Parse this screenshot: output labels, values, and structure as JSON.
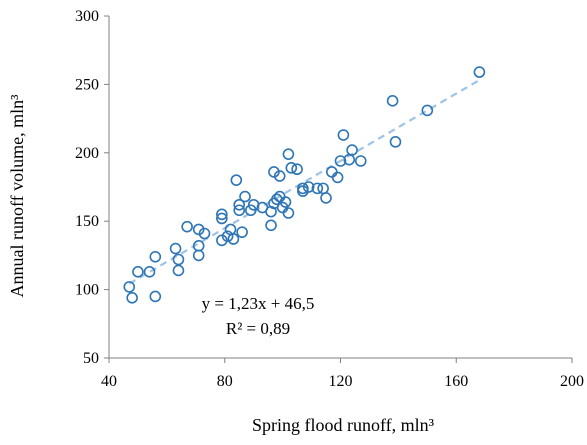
{
  "chart_data": {
    "type": "scatter",
    "title": "",
    "xlabel": "Spring flood runoff, mln³",
    "ylabel": "Annual runoff volume, mln³",
    "xlim": [
      40,
      200
    ],
    "ylim": [
      50,
      300
    ],
    "x_ticks": [
      40,
      80,
      120,
      160,
      200
    ],
    "y_ticks": [
      50,
      100,
      150,
      200,
      250,
      300
    ],
    "x_tick_labels": [
      "40",
      "80",
      "120",
      "160",
      "200"
    ],
    "y_tick_labels": [
      "50",
      "100",
      "150",
      "200",
      "250",
      "300"
    ],
    "grid": false,
    "legend": "none",
    "marker_color": "#2E75B6",
    "trendline_color": "#9DC3E6",
    "trendline": {
      "type": "linear",
      "slope": 1.23,
      "intercept": 46.5,
      "x_range": [
        47,
        168
      ]
    },
    "annotations": [
      "y = 1,23x + 46,5",
      "R² = 0,89"
    ],
    "series": [
      {
        "points": [
          [
            47,
            102
          ],
          [
            48,
            94
          ],
          [
            50,
            113
          ],
          [
            54,
            113
          ],
          [
            56,
            124
          ],
          [
            56,
            95
          ],
          [
            63,
            130
          ],
          [
            64,
            122
          ],
          [
            64,
            114
          ],
          [
            67,
            146
          ],
          [
            71,
            144
          ],
          [
            71,
            132
          ],
          [
            71,
            125
          ],
          [
            73,
            141
          ],
          [
            79,
            136
          ],
          [
            79,
            152
          ],
          [
            79,
            155
          ],
          [
            81,
            139
          ],
          [
            82,
            144
          ],
          [
            83,
            137
          ],
          [
            84,
            180
          ],
          [
            85,
            162
          ],
          [
            85,
            158
          ],
          [
            86,
            142
          ],
          [
            87,
            168
          ],
          [
            89,
            158
          ],
          [
            90,
            162
          ],
          [
            93,
            160
          ],
          [
            96,
            147
          ],
          [
            96,
            157
          ],
          [
            97,
            186
          ],
          [
            97,
            163
          ],
          [
            98,
            166
          ],
          [
            99,
            183
          ],
          [
            99,
            168
          ],
          [
            100,
            160
          ],
          [
            101,
            164
          ],
          [
            102,
            156
          ],
          [
            102,
            199
          ],
          [
            103,
            189
          ],
          [
            105,
            188
          ],
          [
            107,
            174
          ],
          [
            107,
            172
          ],
          [
            109,
            175
          ],
          [
            112,
            174
          ],
          [
            114,
            174
          ],
          [
            115,
            167
          ],
          [
            117,
            186
          ],
          [
            119,
            182
          ],
          [
            120,
            194
          ],
          [
            121,
            213
          ],
          [
            123,
            195
          ],
          [
            124,
            202
          ],
          [
            127,
            194
          ],
          [
            138,
            238
          ],
          [
            139,
            208
          ],
          [
            150,
            231
          ],
          [
            168,
            259
          ]
        ]
      }
    ]
  }
}
